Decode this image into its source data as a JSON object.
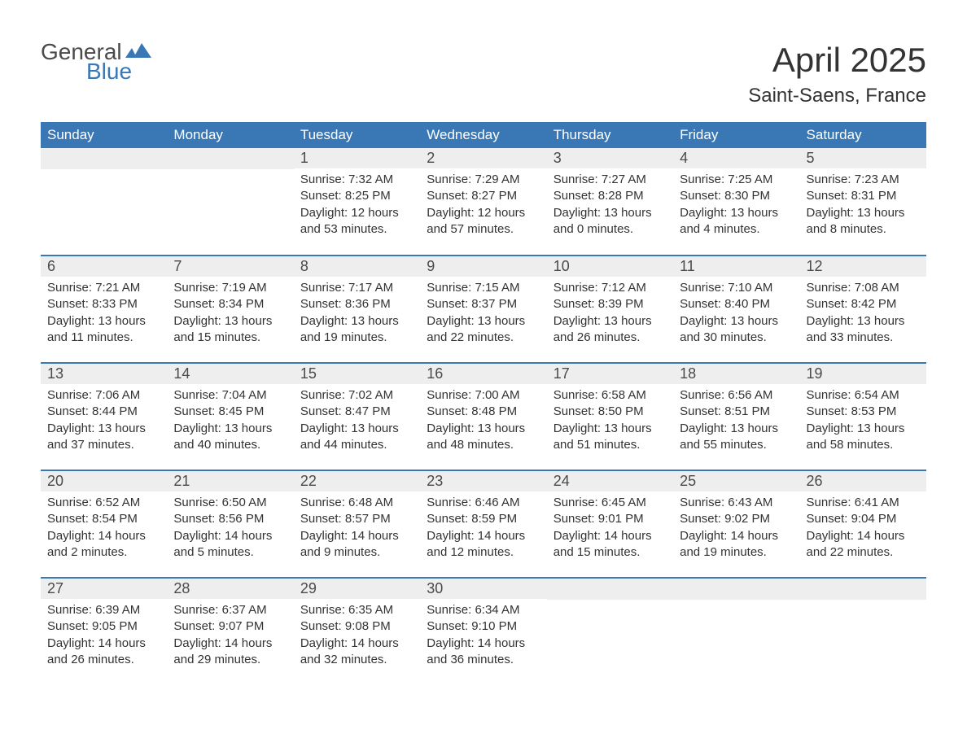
{
  "logo": {
    "text_general": "General",
    "text_blue": "Blue",
    "icon_color": "#3a78b5",
    "general_color": "#4a4a4a",
    "blue_color": "#3a78b5"
  },
  "title": {
    "month": "April 2025",
    "location": "Saint-Saens, France"
  },
  "colors": {
    "header_bg": "#3a78b5",
    "header_text": "#ffffff",
    "day_number_bg": "#eeeeee",
    "text": "#333333",
    "week_divider": "#3a78b5",
    "background": "#ffffff"
  },
  "typography": {
    "month_title_fontsize": 42,
    "location_fontsize": 24,
    "header_fontsize": 17,
    "day_number_fontsize": 18,
    "body_fontsize": 15
  },
  "weekdays": [
    "Sunday",
    "Monday",
    "Tuesday",
    "Wednesday",
    "Thursday",
    "Friday",
    "Saturday"
  ],
  "weeks": [
    [
      {
        "empty": true
      },
      {
        "empty": true
      },
      {
        "day": "1",
        "sunrise": "Sunrise: 7:32 AM",
        "sunset": "Sunset: 8:25 PM",
        "daylight1": "Daylight: 12 hours",
        "daylight2": "and 53 minutes."
      },
      {
        "day": "2",
        "sunrise": "Sunrise: 7:29 AM",
        "sunset": "Sunset: 8:27 PM",
        "daylight1": "Daylight: 12 hours",
        "daylight2": "and 57 minutes."
      },
      {
        "day": "3",
        "sunrise": "Sunrise: 7:27 AM",
        "sunset": "Sunset: 8:28 PM",
        "daylight1": "Daylight: 13 hours",
        "daylight2": "and 0 minutes."
      },
      {
        "day": "4",
        "sunrise": "Sunrise: 7:25 AM",
        "sunset": "Sunset: 8:30 PM",
        "daylight1": "Daylight: 13 hours",
        "daylight2": "and 4 minutes."
      },
      {
        "day": "5",
        "sunrise": "Sunrise: 7:23 AM",
        "sunset": "Sunset: 8:31 PM",
        "daylight1": "Daylight: 13 hours",
        "daylight2": "and 8 minutes."
      }
    ],
    [
      {
        "day": "6",
        "sunrise": "Sunrise: 7:21 AM",
        "sunset": "Sunset: 8:33 PM",
        "daylight1": "Daylight: 13 hours",
        "daylight2": "and 11 minutes."
      },
      {
        "day": "7",
        "sunrise": "Sunrise: 7:19 AM",
        "sunset": "Sunset: 8:34 PM",
        "daylight1": "Daylight: 13 hours",
        "daylight2": "and 15 minutes."
      },
      {
        "day": "8",
        "sunrise": "Sunrise: 7:17 AM",
        "sunset": "Sunset: 8:36 PM",
        "daylight1": "Daylight: 13 hours",
        "daylight2": "and 19 minutes."
      },
      {
        "day": "9",
        "sunrise": "Sunrise: 7:15 AM",
        "sunset": "Sunset: 8:37 PM",
        "daylight1": "Daylight: 13 hours",
        "daylight2": "and 22 minutes."
      },
      {
        "day": "10",
        "sunrise": "Sunrise: 7:12 AM",
        "sunset": "Sunset: 8:39 PM",
        "daylight1": "Daylight: 13 hours",
        "daylight2": "and 26 minutes."
      },
      {
        "day": "11",
        "sunrise": "Sunrise: 7:10 AM",
        "sunset": "Sunset: 8:40 PM",
        "daylight1": "Daylight: 13 hours",
        "daylight2": "and 30 minutes."
      },
      {
        "day": "12",
        "sunrise": "Sunrise: 7:08 AM",
        "sunset": "Sunset: 8:42 PM",
        "daylight1": "Daylight: 13 hours",
        "daylight2": "and 33 minutes."
      }
    ],
    [
      {
        "day": "13",
        "sunrise": "Sunrise: 7:06 AM",
        "sunset": "Sunset: 8:44 PM",
        "daylight1": "Daylight: 13 hours",
        "daylight2": "and 37 minutes."
      },
      {
        "day": "14",
        "sunrise": "Sunrise: 7:04 AM",
        "sunset": "Sunset: 8:45 PM",
        "daylight1": "Daylight: 13 hours",
        "daylight2": "and 40 minutes."
      },
      {
        "day": "15",
        "sunrise": "Sunrise: 7:02 AM",
        "sunset": "Sunset: 8:47 PM",
        "daylight1": "Daylight: 13 hours",
        "daylight2": "and 44 minutes."
      },
      {
        "day": "16",
        "sunrise": "Sunrise: 7:00 AM",
        "sunset": "Sunset: 8:48 PM",
        "daylight1": "Daylight: 13 hours",
        "daylight2": "and 48 minutes."
      },
      {
        "day": "17",
        "sunrise": "Sunrise: 6:58 AM",
        "sunset": "Sunset: 8:50 PM",
        "daylight1": "Daylight: 13 hours",
        "daylight2": "and 51 minutes."
      },
      {
        "day": "18",
        "sunrise": "Sunrise: 6:56 AM",
        "sunset": "Sunset: 8:51 PM",
        "daylight1": "Daylight: 13 hours",
        "daylight2": "and 55 minutes."
      },
      {
        "day": "19",
        "sunrise": "Sunrise: 6:54 AM",
        "sunset": "Sunset: 8:53 PM",
        "daylight1": "Daylight: 13 hours",
        "daylight2": "and 58 minutes."
      }
    ],
    [
      {
        "day": "20",
        "sunrise": "Sunrise: 6:52 AM",
        "sunset": "Sunset: 8:54 PM",
        "daylight1": "Daylight: 14 hours",
        "daylight2": "and 2 minutes."
      },
      {
        "day": "21",
        "sunrise": "Sunrise: 6:50 AM",
        "sunset": "Sunset: 8:56 PM",
        "daylight1": "Daylight: 14 hours",
        "daylight2": "and 5 minutes."
      },
      {
        "day": "22",
        "sunrise": "Sunrise: 6:48 AM",
        "sunset": "Sunset: 8:57 PM",
        "daylight1": "Daylight: 14 hours",
        "daylight2": "and 9 minutes."
      },
      {
        "day": "23",
        "sunrise": "Sunrise: 6:46 AM",
        "sunset": "Sunset: 8:59 PM",
        "daylight1": "Daylight: 14 hours",
        "daylight2": "and 12 minutes."
      },
      {
        "day": "24",
        "sunrise": "Sunrise: 6:45 AM",
        "sunset": "Sunset: 9:01 PM",
        "daylight1": "Daylight: 14 hours",
        "daylight2": "and 15 minutes."
      },
      {
        "day": "25",
        "sunrise": "Sunrise: 6:43 AM",
        "sunset": "Sunset: 9:02 PM",
        "daylight1": "Daylight: 14 hours",
        "daylight2": "and 19 minutes."
      },
      {
        "day": "26",
        "sunrise": "Sunrise: 6:41 AM",
        "sunset": "Sunset: 9:04 PM",
        "daylight1": "Daylight: 14 hours",
        "daylight2": "and 22 minutes."
      }
    ],
    [
      {
        "day": "27",
        "sunrise": "Sunrise: 6:39 AM",
        "sunset": "Sunset: 9:05 PM",
        "daylight1": "Daylight: 14 hours",
        "daylight2": "and 26 minutes."
      },
      {
        "day": "28",
        "sunrise": "Sunrise: 6:37 AM",
        "sunset": "Sunset: 9:07 PM",
        "daylight1": "Daylight: 14 hours",
        "daylight2": "and 29 minutes."
      },
      {
        "day": "29",
        "sunrise": "Sunrise: 6:35 AM",
        "sunset": "Sunset: 9:08 PM",
        "daylight1": "Daylight: 14 hours",
        "daylight2": "and 32 minutes."
      },
      {
        "day": "30",
        "sunrise": "Sunrise: 6:34 AM",
        "sunset": "Sunset: 9:10 PM",
        "daylight1": "Daylight: 14 hours",
        "daylight2": "and 36 minutes."
      },
      {
        "empty": true
      },
      {
        "empty": true
      },
      {
        "empty": true
      }
    ]
  ]
}
